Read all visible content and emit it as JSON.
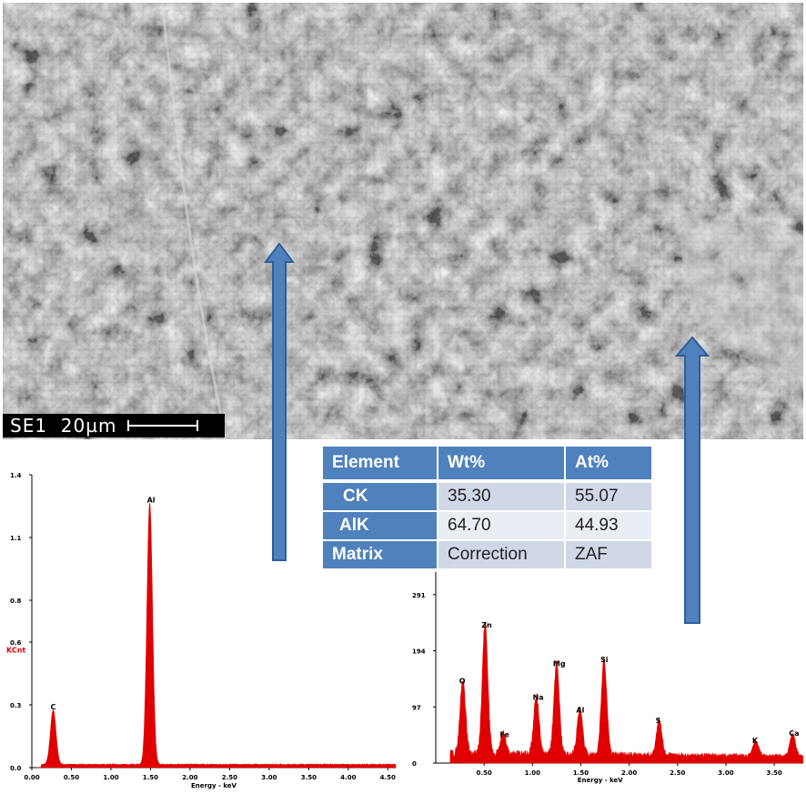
{
  "micrograph": {
    "scale_label": "SE1  20µm"
  },
  "table": {
    "headers": [
      "Element",
      "Wt%",
      "At%"
    ],
    "rows": [
      [
        "CK",
        "35.30",
        "55.07"
      ],
      [
        "AlK",
        "64.70",
        "44.93"
      ],
      [
        "Matrix",
        "Correction",
        "ZAF"
      ]
    ]
  },
  "spectrum_left": {
    "y_axis_label": "KCnt",
    "x_axis_label": "Energy - keV",
    "y_ticks": [
      "1.4",
      "1.1",
      "0.8",
      "0.6",
      "0.3",
      "0.0"
    ],
    "x_ticks": [
      "0.00",
      "0.50",
      "1.00",
      "1.50",
      "2.00",
      "2.50",
      "3.00",
      "3.50",
      "4.00",
      "4.50"
    ],
    "peak_labels": [
      {
        "label": "C",
        "energy_kev": 0.27,
        "kcnt": 0.26
      },
      {
        "label": "Al",
        "energy_kev": 1.49,
        "kcnt": 1.25
      }
    ],
    "color": "#e00000"
  },
  "spectrum_right": {
    "x_axis_label": "Energy - keV",
    "y_ticks": [
      "291",
      "194",
      "97",
      "0"
    ],
    "x_ticks": [
      "0.50",
      "1.00",
      "1.50",
      "2.00",
      "2.50",
      "3.00",
      "3.50"
    ],
    "peak_labels": [
      {
        "label": "O",
        "energy_kev": 0.28,
        "counts": 128
      },
      {
        "label": "Zn",
        "energy_kev": 0.51,
        "counts": 225
      },
      {
        "label": "Fe",
        "energy_kev": 0.7,
        "counts": 35
      },
      {
        "label": "Na",
        "energy_kev": 1.04,
        "counts": 100
      },
      {
        "label": "Mg",
        "energy_kev": 1.25,
        "counts": 158
      },
      {
        "label": "Al",
        "energy_kev": 1.49,
        "counts": 78
      },
      {
        "label": "Si",
        "energy_kev": 1.74,
        "counts": 165
      },
      {
        "label": "S",
        "energy_kev": 2.31,
        "counts": 60
      },
      {
        "label": "K",
        "energy_kev": 3.31,
        "counts": 25
      },
      {
        "label": "Ca",
        "energy_kev": 3.69,
        "counts": 38
      }
    ],
    "color": "#e00000"
  },
  "colors": {
    "arrow": "#4f81bd",
    "table_header": "#4f81bd",
    "spectrum": "#e00000"
  }
}
